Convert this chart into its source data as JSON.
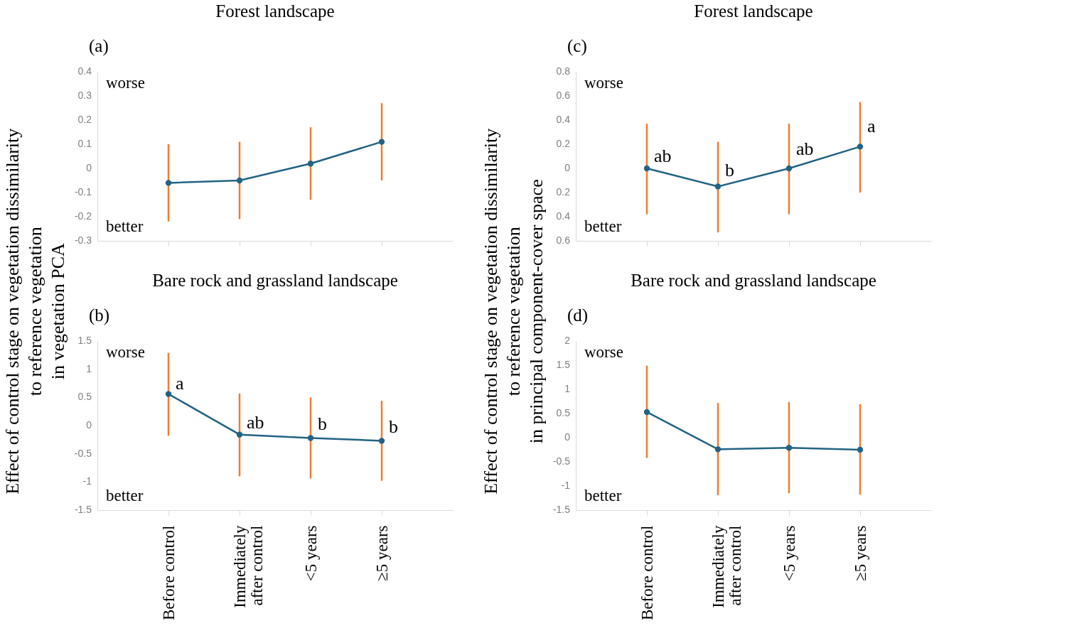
{
  "chart_data": [
    {
      "type": "line",
      "title": "Forest landscape",
      "ylabel": "Effect of control stage on vegetation dissimilarity\nto reference vegetation\nin vegetation PCA",
      "categories": [
        "Before control",
        "Immediately after control",
        "<5 years",
        "≥5 years"
      ],
      "series": [
        {
          "color": "#236384",
          "values": [
            -0.06,
            -0.05,
            0.02,
            0.11
          ],
          "errors": [
            [
              -0.22,
              0.1
            ],
            [
              -0.21,
              0.11
            ],
            [
              -0.13,
              0.17
            ],
            [
              -0.05,
              0.27
            ]
          ]
        }
      ],
      "ylim": [
        -0.3,
        0.4
      ],
      "yticks": [
        -0.3,
        -0.2,
        -0.1,
        0,
        0.1,
        0.2,
        0.3,
        0.4
      ],
      "marker": "circle",
      "tick_labels": "y",
      "annotations": [
        "(a)",
        "worse",
        "better"
      ]
    },
    {
      "type": "line",
      "title": "Bare rock and grassland landscape",
      "categories": [
        "Before control",
        "Immediately after control",
        "<5 years",
        "≥5 years"
      ],
      "series": [
        {
          "color": "#236384",
          "values": [
            0.56,
            -0.16,
            -0.22,
            -0.27
          ],
          "errors": [
            [
              -0.18,
              1.29
            ],
            [
              -0.9,
              0.57
            ],
            [
              -0.94,
              0.5
            ],
            [
              -0.98,
              0.44
            ]
          ]
        }
      ],
      "ylim": [
        -1.5,
        1.5
      ],
      "yticks": [
        -1.5,
        -1,
        -0.5,
        0,
        0.5,
        1,
        1.5
      ],
      "marker": "circle",
      "annotations": [
        "(b)",
        "worse",
        "better",
        {
          "text": "a",
          "x": "Before control",
          "y": 0.75
        },
        {
          "text": "ab",
          "x": "Immediately after control",
          "y": 0.05
        },
        {
          "text": "b",
          "x": "<5 years",
          "y": 0.02
        },
        {
          "text": "b",
          "x": "≥5 years",
          "y": -0.02
        }
      ]
    },
    {
      "type": "line",
      "title": "Forest landscape",
      "ylabel": "Effect of control stage on vegetation dissimilarity\nto reference vegetation\nin principal component-cover space",
      "categories": [
        "Before control",
        "Immediately after control",
        "<5 years",
        "≥5 years"
      ],
      "series": [
        {
          "color": "#236384",
          "values": [
            0,
            -0.15,
            0,
            0.18
          ],
          "errors": [
            [
              -0.38,
              0.37
            ],
            [
              -0.53,
              0.22
            ],
            [
              -0.38,
              0.37
            ],
            [
              -0.2,
              0.55
            ]
          ]
        }
      ],
      "ylim": [
        -0.6,
        0.8
      ],
      "yticks": [
        {
          "value": -0.6,
          "label": "0.6"
        },
        {
          "value": -0.4,
          "label": "0.4"
        },
        {
          "value": -0.2,
          "label": "0.2"
        },
        0,
        0.2,
        0.4,
        0.6,
        0.8
      ],
      "marker": "circle",
      "tick_labels": "y",
      "annotations": [
        "(c)",
        "worse",
        "better",
        {
          "text": "ab",
          "x": "Before control",
          "y": 0.1
        },
        {
          "text": "b",
          "x": "Immediately after control",
          "y": -0.02
        },
        {
          "text": "ab",
          "x": "<5 years",
          "y": 0.16
        },
        {
          "text": "a",
          "x": "≥5 years",
          "y": 0.35
        }
      ]
    },
    {
      "type": "line",
      "title": "Bare rock and grassland landscape",
      "categories": [
        "Before control",
        "Immediately after control",
        "<5 years",
        "≥5 years"
      ],
      "series": [
        {
          "color": "#236384",
          "values": [
            0.53,
            -0.24,
            -0.21,
            -0.25
          ],
          "errors": [
            [
              -0.42,
              1.49
            ],
            [
              -1.19,
              0.72
            ],
            [
              -1.15,
              0.74
            ],
            [
              -1.18,
              0.69
            ]
          ]
        }
      ],
      "ylim": [
        -1.5,
        2
      ],
      "yticks": [
        -1.5,
        -1,
        -0.5,
        0,
        0.5,
        1,
        1.5,
        2
      ],
      "marker": "circle",
      "annotations": [
        "(d)",
        "worse",
        "better"
      ]
    }
  ]
}
